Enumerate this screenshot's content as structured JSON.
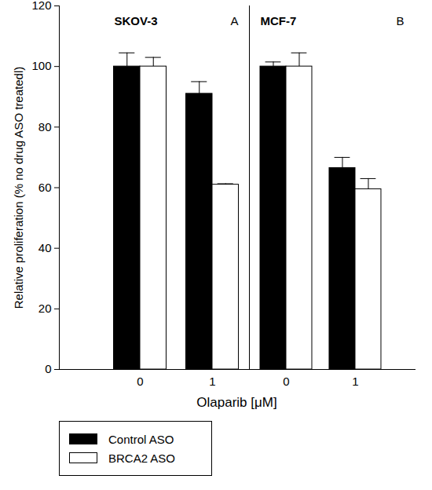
{
  "chart_data": [
    {
      "type": "bar",
      "title": "SKOV-3",
      "annotation": "A",
      "categories": [
        "0",
        "1"
      ],
      "xlabel": "Olaparib [μM]",
      "ylabel": "Relative proliferation (% no drug ASO treatedl)",
      "ylim": [
        0,
        120
      ],
      "yticks": [
        0,
        20,
        40,
        60,
        80,
        100,
        120
      ],
      "legend": "bottom left",
      "series": [
        {
          "name": "Control ASO",
          "color": "#000000",
          "values": [
            100,
            91
          ],
          "errors": [
            4.5,
            4
          ]
        },
        {
          "name": "BRCA2 ASO",
          "color": "#ffffff",
          "values": [
            100,
            61
          ],
          "errors": [
            3,
            0.3
          ]
        }
      ]
    },
    {
      "type": "bar",
      "title": "MCF-7",
      "annotation": "B",
      "categories": [
        "0",
        "1"
      ],
      "ylim": [
        0,
        120
      ],
      "tick_labels": "x",
      "series": [
        {
          "name": "Control ASO",
          "color": "#000000",
          "values": [
            100,
            66.5
          ],
          "errors": [
            1.5,
            3.5
          ]
        },
        {
          "name": "BRCA2 ASO",
          "color": "#ffffff",
          "values": [
            100,
            59.5
          ],
          "errors": [
            4.5,
            3.5
          ]
        }
      ]
    }
  ]
}
